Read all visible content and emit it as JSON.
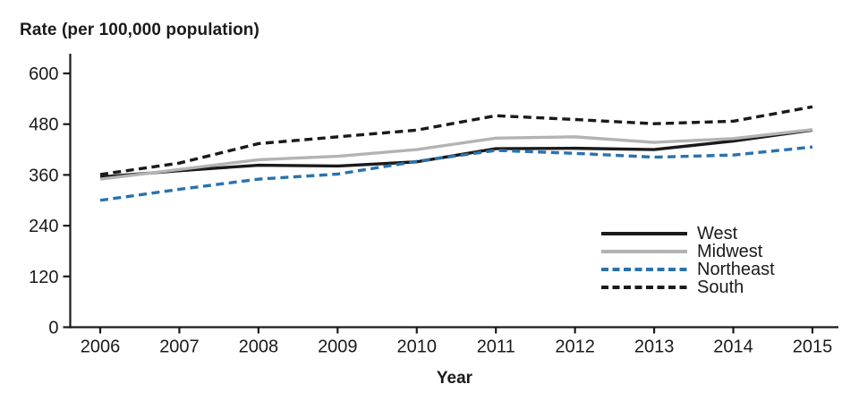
{
  "chart_data": {
    "type": "line",
    "title": "Rate (per 100,000 population)",
    "xlabel": "Year",
    "ylabel": "Rate (per 100,000 population)",
    "categories": [
      "2006",
      "2007",
      "2008",
      "2009",
      "2010",
      "2011",
      "2012",
      "2013",
      "2014",
      "2015"
    ],
    "yticks": [
      0,
      120,
      240,
      360,
      480,
      600
    ],
    "ylim": [
      0,
      600
    ],
    "grid": false,
    "legend_position": "inside-right",
    "axis_color": "#1a1a1a",
    "series": [
      {
        "name": "West",
        "color": "#1a1a1a",
        "style": "solid",
        "values": [
          355,
          370,
          383,
          381,
          391,
          422,
          423,
          420,
          440,
          466
        ]
      },
      {
        "name": "Midwest",
        "color": "#b3b3b3",
        "style": "solid",
        "values": [
          350,
          373,
          396,
          404,
          420,
          447,
          450,
          437,
          446,
          467
        ]
      },
      {
        "name": "Northeast",
        "color": "#2a72ae",
        "style": "dashed",
        "values": [
          300,
          326,
          350,
          362,
          392,
          418,
          411,
          402,
          407,
          426
        ]
      },
      {
        "name": "South",
        "color": "#1a1a1a",
        "style": "dashed",
        "values": [
          361,
          388,
          434,
          450,
          466,
          500,
          491,
          481,
          487,
          521
        ]
      }
    ]
  }
}
